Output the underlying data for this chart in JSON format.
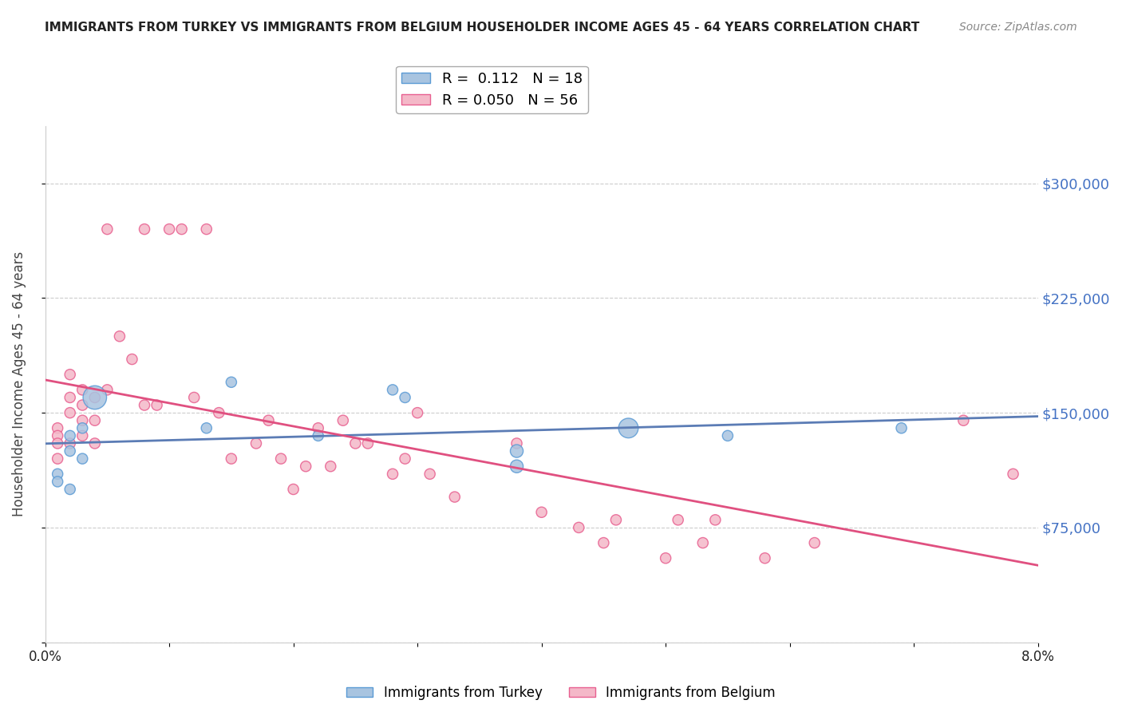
{
  "title": "IMMIGRANTS FROM TURKEY VS IMMIGRANTS FROM BELGIUM HOUSEHOLDER INCOME AGES 45 - 64 YEARS CORRELATION CHART",
  "source": "Source: ZipAtlas.com",
  "ylabel": "Householder Income Ages 45 - 64 years",
  "xlabel": "",
  "xlim": [
    0.0,
    0.08
  ],
  "ylim": [
    0,
    337500
  ],
  "yticks": [
    0,
    75000,
    150000,
    225000,
    300000
  ],
  "ytick_labels": [
    "",
    "$75,000",
    "$150,000",
    "$225,000",
    "$300,000"
  ],
  "xticks": [
    0.0,
    0.01,
    0.02,
    0.03,
    0.04,
    0.05,
    0.06,
    0.07,
    0.08
  ],
  "xtick_labels": [
    "0.0%",
    "",
    "",
    "",
    "",
    "",
    "",
    "",
    "8.0%"
  ],
  "turkey_color": "#a8c4e0",
  "turkey_edge_color": "#5b9bd5",
  "belgium_color": "#f4b8c8",
  "belgium_edge_color": "#e86090",
  "line_turkey_color": "#5b7cb5",
  "line_belgium_color": "#e05080",
  "legend_turkey_R": "0.112",
  "legend_turkey_N": "18",
  "legend_belgium_R": "0.050",
  "legend_belgium_N": "56",
  "turkey_x": [
    0.001,
    0.001,
    0.002,
    0.002,
    0.002,
    0.003,
    0.003,
    0.004,
    0.013,
    0.015,
    0.022,
    0.028,
    0.029,
    0.038,
    0.038,
    0.047,
    0.055,
    0.069
  ],
  "turkey_y": [
    110000,
    105000,
    125000,
    135000,
    100000,
    140000,
    120000,
    160000,
    140000,
    170000,
    135000,
    165000,
    160000,
    125000,
    115000,
    140000,
    135000,
    140000
  ],
  "turkey_size": [
    60,
    60,
    60,
    60,
    60,
    60,
    60,
    300,
    60,
    60,
    60,
    60,
    60,
    90,
    90,
    210,
    60,
    60
  ],
  "belgium_x": [
    0.001,
    0.001,
    0.001,
    0.001,
    0.002,
    0.002,
    0.002,
    0.002,
    0.003,
    0.003,
    0.003,
    0.003,
    0.004,
    0.004,
    0.004,
    0.005,
    0.005,
    0.006,
    0.007,
    0.008,
    0.008,
    0.009,
    0.01,
    0.011,
    0.012,
    0.013,
    0.014,
    0.015,
    0.017,
    0.018,
    0.019,
    0.02,
    0.021,
    0.022,
    0.023,
    0.024,
    0.025,
    0.026,
    0.028,
    0.029,
    0.03,
    0.031,
    0.033,
    0.038,
    0.04,
    0.043,
    0.045,
    0.046,
    0.05,
    0.051,
    0.053,
    0.054,
    0.058,
    0.062,
    0.074,
    0.078
  ],
  "belgium_y": [
    140000,
    135000,
    130000,
    120000,
    175000,
    160000,
    150000,
    130000,
    165000,
    155000,
    145000,
    135000,
    160000,
    145000,
    130000,
    270000,
    165000,
    200000,
    185000,
    270000,
    155000,
    155000,
    270000,
    270000,
    160000,
    270000,
    150000,
    120000,
    130000,
    145000,
    120000,
    100000,
    115000,
    140000,
    115000,
    145000,
    130000,
    130000,
    110000,
    120000,
    150000,
    110000,
    95000,
    130000,
    85000,
    75000,
    65000,
    80000,
    55000,
    80000,
    65000,
    80000,
    55000,
    65000,
    145000,
    110000
  ],
  "belgium_size": [
    60,
    60,
    60,
    60,
    60,
    60,
    60,
    60,
    60,
    60,
    60,
    60,
    60,
    60,
    60,
    60,
    60,
    60,
    60,
    60,
    60,
    60,
    60,
    60,
    60,
    60,
    60,
    60,
    60,
    60,
    60,
    60,
    60,
    60,
    60,
    60,
    60,
    60,
    60,
    60,
    60,
    60,
    60,
    60,
    60,
    60,
    60,
    60,
    60,
    60,
    60,
    60,
    60,
    60,
    60,
    60
  ],
  "background_color": "#ffffff",
  "grid_color": "#cccccc",
  "title_color": "#222222",
  "axis_label_color": "#444444",
  "ytick_label_color": "#4472c4",
  "xtick_label_color": "#222222"
}
